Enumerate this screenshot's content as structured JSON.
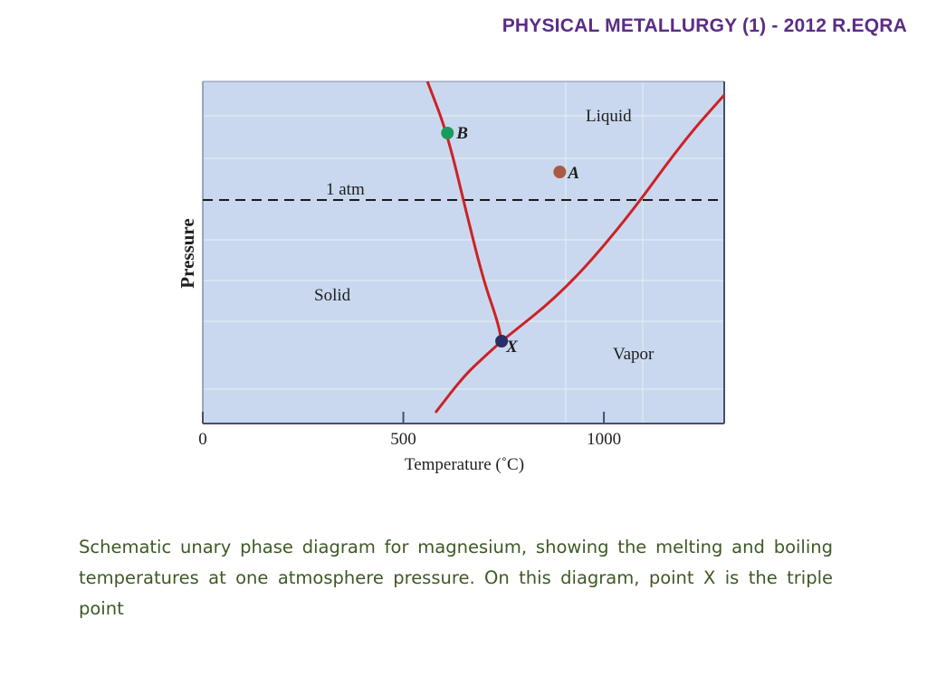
{
  "header": {
    "title": "Physical Metallurgy (1) - 2012 R.Eqra"
  },
  "chart_data": {
    "type": "line",
    "xlabel": "Temperature (˚C)",
    "ylabel": "Pressure",
    "xlim": [
      0,
      1300
    ],
    "x_ticks": [
      {
        "value": 0,
        "label": "0"
      },
      {
        "value": 500,
        "label": "500"
      },
      {
        "value": 1000,
        "label": "1000"
      }
    ],
    "y_ticks_labeled": false,
    "background_color": "#c9d8ee",
    "curve_color": "#cc2226",
    "reference_line": {
      "label": "1 atm",
      "style": "dashed"
    },
    "regions": [
      "Liquid",
      "Solid",
      "Vapor"
    ],
    "points": [
      {
        "label": "B",
        "color": "#1a9a5c",
        "temperature": 610
      },
      {
        "label": "A",
        "color": "#a85a44",
        "temperature": 890
      },
      {
        "label": "X",
        "color": "#2a2d63",
        "temperature": 745
      }
    ],
    "curves": [
      {
        "name": "solid-liquid boundary",
        "x": [
          560,
          610,
          660,
          700,
          735,
          745
        ]
      },
      {
        "name": "solid-vapor boundary",
        "x": [
          580,
          650,
          700,
          745
        ]
      },
      {
        "name": "liquid-vapor boundary",
        "x": [
          745,
          900,
          1050,
          1200,
          1300
        ]
      }
    ]
  },
  "caption": "Schematic unary phase diagram for magnesium, showing the melting and boiling temperatures at one atmosphere pressure. On this diagram, point X is the triple point"
}
